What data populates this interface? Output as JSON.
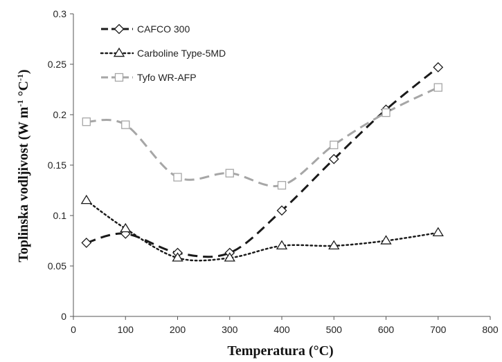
{
  "chart_data": {
    "type": "line",
    "xlabel_main": "Temperatura",
    "xlabel_unit": "(°C)",
    "ylabel_main": "Toplinska vodljivost",
    "ylabel_unit_open": "(W m",
    "ylabel_unit_exp1": "-1",
    "ylabel_unit_mid": " °C",
    "ylabel_unit_exp2": "-1",
    "ylabel_unit_close": ")",
    "xlim": [
      0,
      800
    ],
    "ylim": [
      0,
      0.3
    ],
    "x_ticks": [
      "0",
      "100",
      "200",
      "300",
      "400",
      "500",
      "600",
      "700",
      "800"
    ],
    "y_ticks": [
      "0",
      "0.05",
      "0.1",
      "0.15",
      "0.2",
      "0.25",
      "0.3"
    ],
    "grid": false,
    "legend_position": "top-left",
    "series": [
      {
        "name": "CAFCO 300",
        "line_style": "dashed",
        "marker": "diamond",
        "color": "#1a1a1a",
        "x": [
          25,
          100,
          200,
          300,
          400,
          500,
          600,
          700
        ],
        "y": [
          0.073,
          0.082,
          0.063,
          0.063,
          0.105,
          0.156,
          0.205,
          0.247
        ]
      },
      {
        "name": "Carboline Type-5MD",
        "line_style": "dotted",
        "marker": "triangle",
        "color": "#1a1a1a",
        "x": [
          25,
          100,
          200,
          300,
          400,
          500,
          600,
          700
        ],
        "y": [
          0.115,
          0.087,
          0.058,
          0.058,
          0.07,
          0.07,
          0.075,
          0.083
        ]
      },
      {
        "name": "Tyfo WR-AFP",
        "line_style": "dashed",
        "marker": "square",
        "color": "#a6a6a6",
        "x": [
          25,
          100,
          200,
          300,
          400,
          500,
          600,
          700
        ],
        "y": [
          0.193,
          0.19,
          0.138,
          0.142,
          0.13,
          0.17,
          0.202,
          0.227
        ]
      }
    ]
  }
}
